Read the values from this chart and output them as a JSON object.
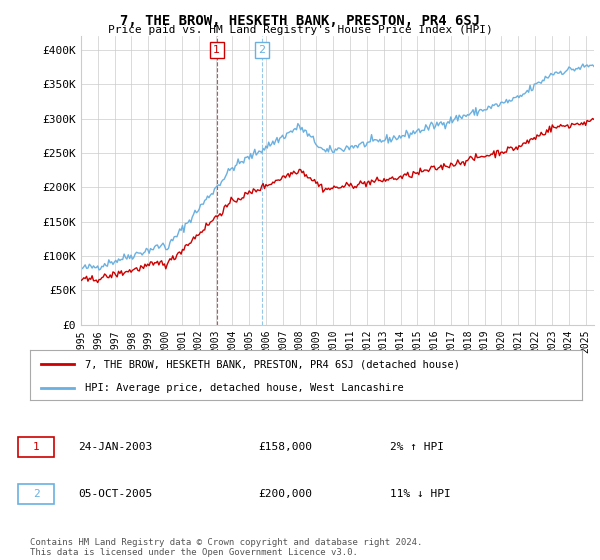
{
  "title": "7, THE BROW, HESKETH BANK, PRESTON, PR4 6SJ",
  "subtitle": "Price paid vs. HM Land Registry's House Price Index (HPI)",
  "ylabel_ticks": [
    "£0",
    "£50K",
    "£100K",
    "£150K",
    "£200K",
    "£250K",
    "£300K",
    "£350K",
    "£400K"
  ],
  "ytick_values": [
    0,
    50000,
    100000,
    150000,
    200000,
    250000,
    300000,
    350000,
    400000
  ],
  "ylim": [
    0,
    420000
  ],
  "xlim_start": 1995.0,
  "xlim_end": 2025.5,
  "hpi_color": "#6ab0e0",
  "price_color": "#cc0000",
  "transaction1_x": 2003.07,
  "transaction1_y": 158000,
  "transaction2_x": 2005.75,
  "transaction2_y": 200000,
  "legend_label1": "7, THE BROW, HESKETH BANK, PRESTON, PR4 6SJ (detached house)",
  "legend_label2": "HPI: Average price, detached house, West Lancashire",
  "table_row1": [
    "1",
    "24-JAN-2003",
    "£158,000",
    "2% ↑ HPI"
  ],
  "table_row2": [
    "2",
    "05-OCT-2005",
    "£200,000",
    "11% ↓ HPI"
  ],
  "footnote": "Contains HM Land Registry data © Crown copyright and database right 2024.\nThis data is licensed under the Open Government Licence v3.0.",
  "background_color": "#ffffff",
  "grid_color": "#cccccc"
}
